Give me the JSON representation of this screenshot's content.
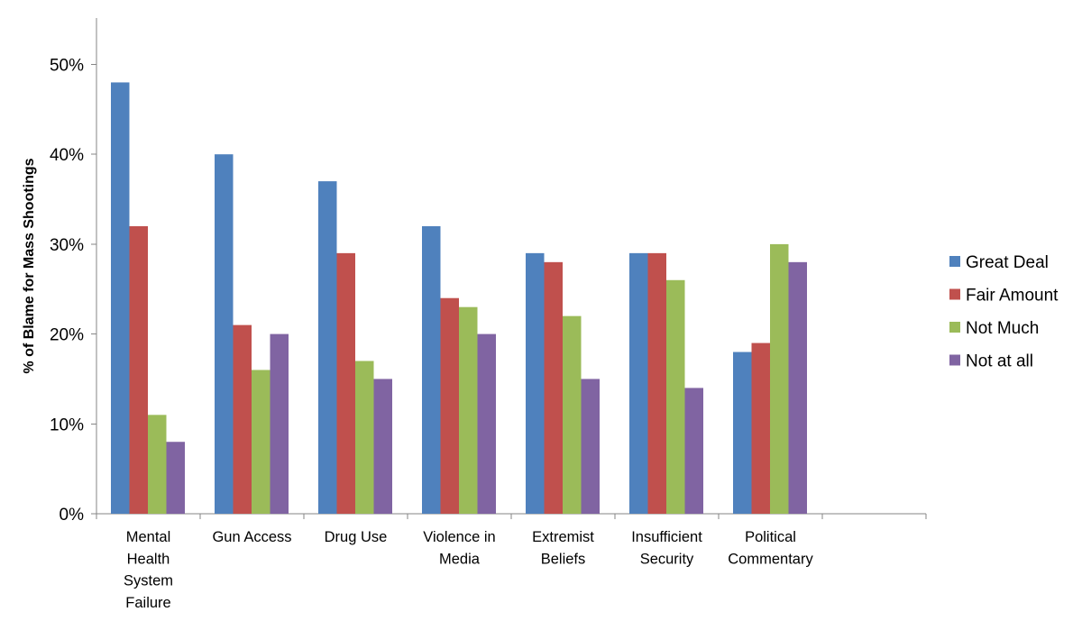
{
  "chart_data": {
    "type": "bar",
    "title": "",
    "xlabel": "",
    "ylabel": "% of Blame for Mass Shootings",
    "ylim": [
      0,
      55
    ],
    "yticks": [
      "0%",
      "10%",
      "20%",
      "30%",
      "40%",
      "50%"
    ],
    "ytick_values": [
      0,
      10,
      20,
      30,
      40,
      50
    ],
    "grid": false,
    "legend_position": "right",
    "categories": [
      [
        "Mental",
        "Health",
        "System",
        "Failure"
      ],
      [
        "Gun Access"
      ],
      [
        "Drug Use"
      ],
      [
        "Violence in",
        "Media"
      ],
      [
        "Extremist",
        "Beliefs"
      ],
      [
        "Insufficient",
        "Security"
      ],
      [
        "Political",
        "Commentary"
      ],
      []
    ],
    "series": [
      {
        "name": "Great Deal",
        "color": "#4F81BD",
        "values": [
          48,
          40,
          37,
          32,
          29,
          29,
          18,
          null
        ]
      },
      {
        "name": "Fair Amount",
        "color": "#C0504D",
        "values": [
          32,
          21,
          29,
          24,
          28,
          29,
          19,
          null
        ]
      },
      {
        "name": "Not Much",
        "color": "#9BBB59",
        "values": [
          11,
          16,
          17,
          23,
          22,
          26,
          30,
          null
        ]
      },
      {
        "name": "Not at all",
        "color": "#8064A2",
        "values": [
          8,
          20,
          15,
          20,
          15,
          14,
          28,
          null
        ]
      }
    ]
  }
}
